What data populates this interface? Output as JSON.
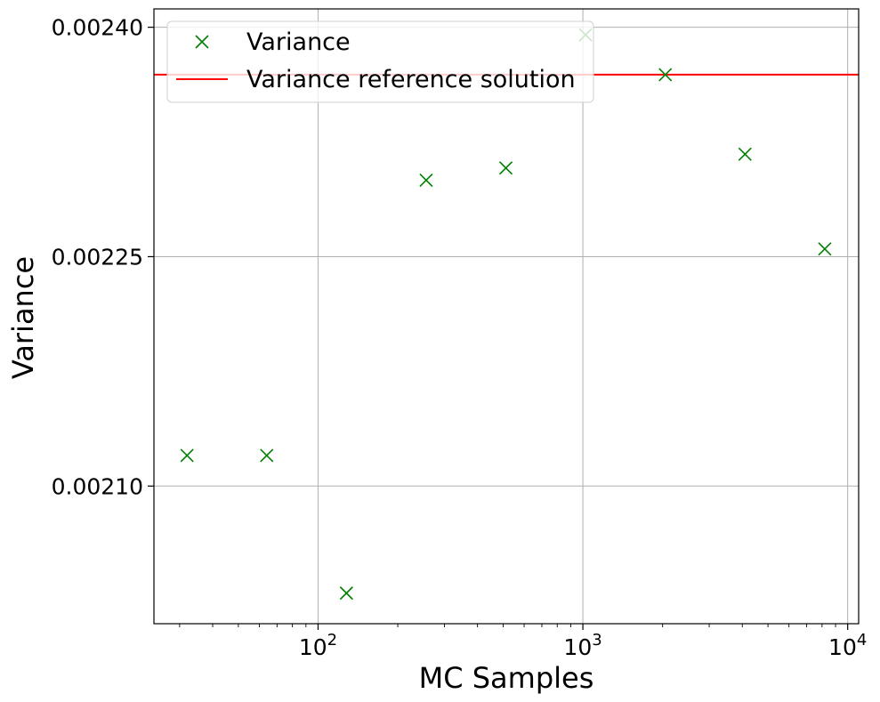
{
  "chart_data": {
    "type": "scatter",
    "xlabel": "MC Samples",
    "ylabel": "Variance",
    "xscale": "log",
    "xlim": [
      24,
      11000
    ],
    "ylim": [
      0.00201,
      0.002412
    ],
    "grid": true,
    "legend_position": "top-left",
    "x_ticks": [
      {
        "value": 100,
        "base": "10",
        "exp": "2"
      },
      {
        "value": 1000,
        "base": "10",
        "exp": "3"
      },
      {
        "value": 10000,
        "base": "10",
        "exp": "4"
      }
    ],
    "y_ticks": [
      {
        "value": 0.0021,
        "label": "0.00210"
      },
      {
        "value": 0.00225,
        "label": "0.00225"
      },
      {
        "value": 0.0024,
        "label": "0.00240"
      }
    ],
    "series": [
      {
        "name": "Variance",
        "marker": "x",
        "color": "#008000",
        "x": [
          32,
          64,
          128,
          256,
          512,
          1024,
          2048,
          4096,
          8192
        ],
        "y": [
          0.00212,
          0.00212,
          0.00203,
          0.0023,
          0.002308,
          0.002395,
          0.002369,
          0.002317,
          0.002255
        ]
      },
      {
        "name": "Variance reference solution",
        "type": "hline",
        "color": "#ff0000",
        "y": 0.002369
      }
    ]
  }
}
